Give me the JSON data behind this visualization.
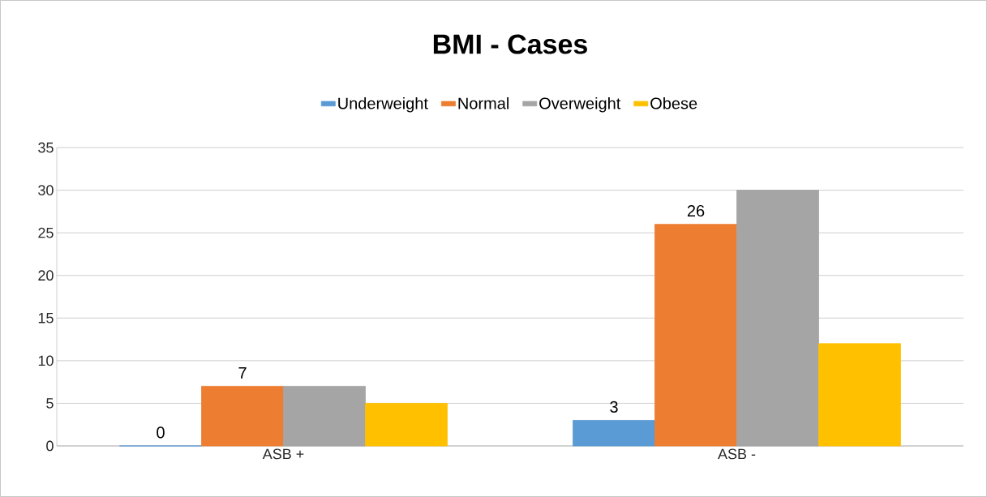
{
  "chart_data": {
    "type": "bar",
    "title": "BMI - Cases",
    "categories": [
      "ASB +",
      "ASB -"
    ],
    "series": [
      {
        "name": "Underweight",
        "color": "#5b9bd5",
        "values": [
          0,
          3
        ],
        "value_labels": [
          "0",
          "3"
        ]
      },
      {
        "name": "Normal",
        "color": "#ed7d31",
        "values": [
          7,
          26
        ],
        "value_labels": [
          "7",
          "26"
        ]
      },
      {
        "name": "Overweight",
        "color": "#a5a5a5",
        "values": [
          7,
          30
        ]
      },
      {
        "name": "Obese",
        "color": "#ffc000",
        "values": [
          5,
          12
        ]
      }
    ],
    "ylim": [
      0,
      35
    ],
    "yticks": [
      0,
      5,
      10,
      15,
      20,
      25,
      30,
      35
    ],
    "grid": "y",
    "legend": "top"
  }
}
